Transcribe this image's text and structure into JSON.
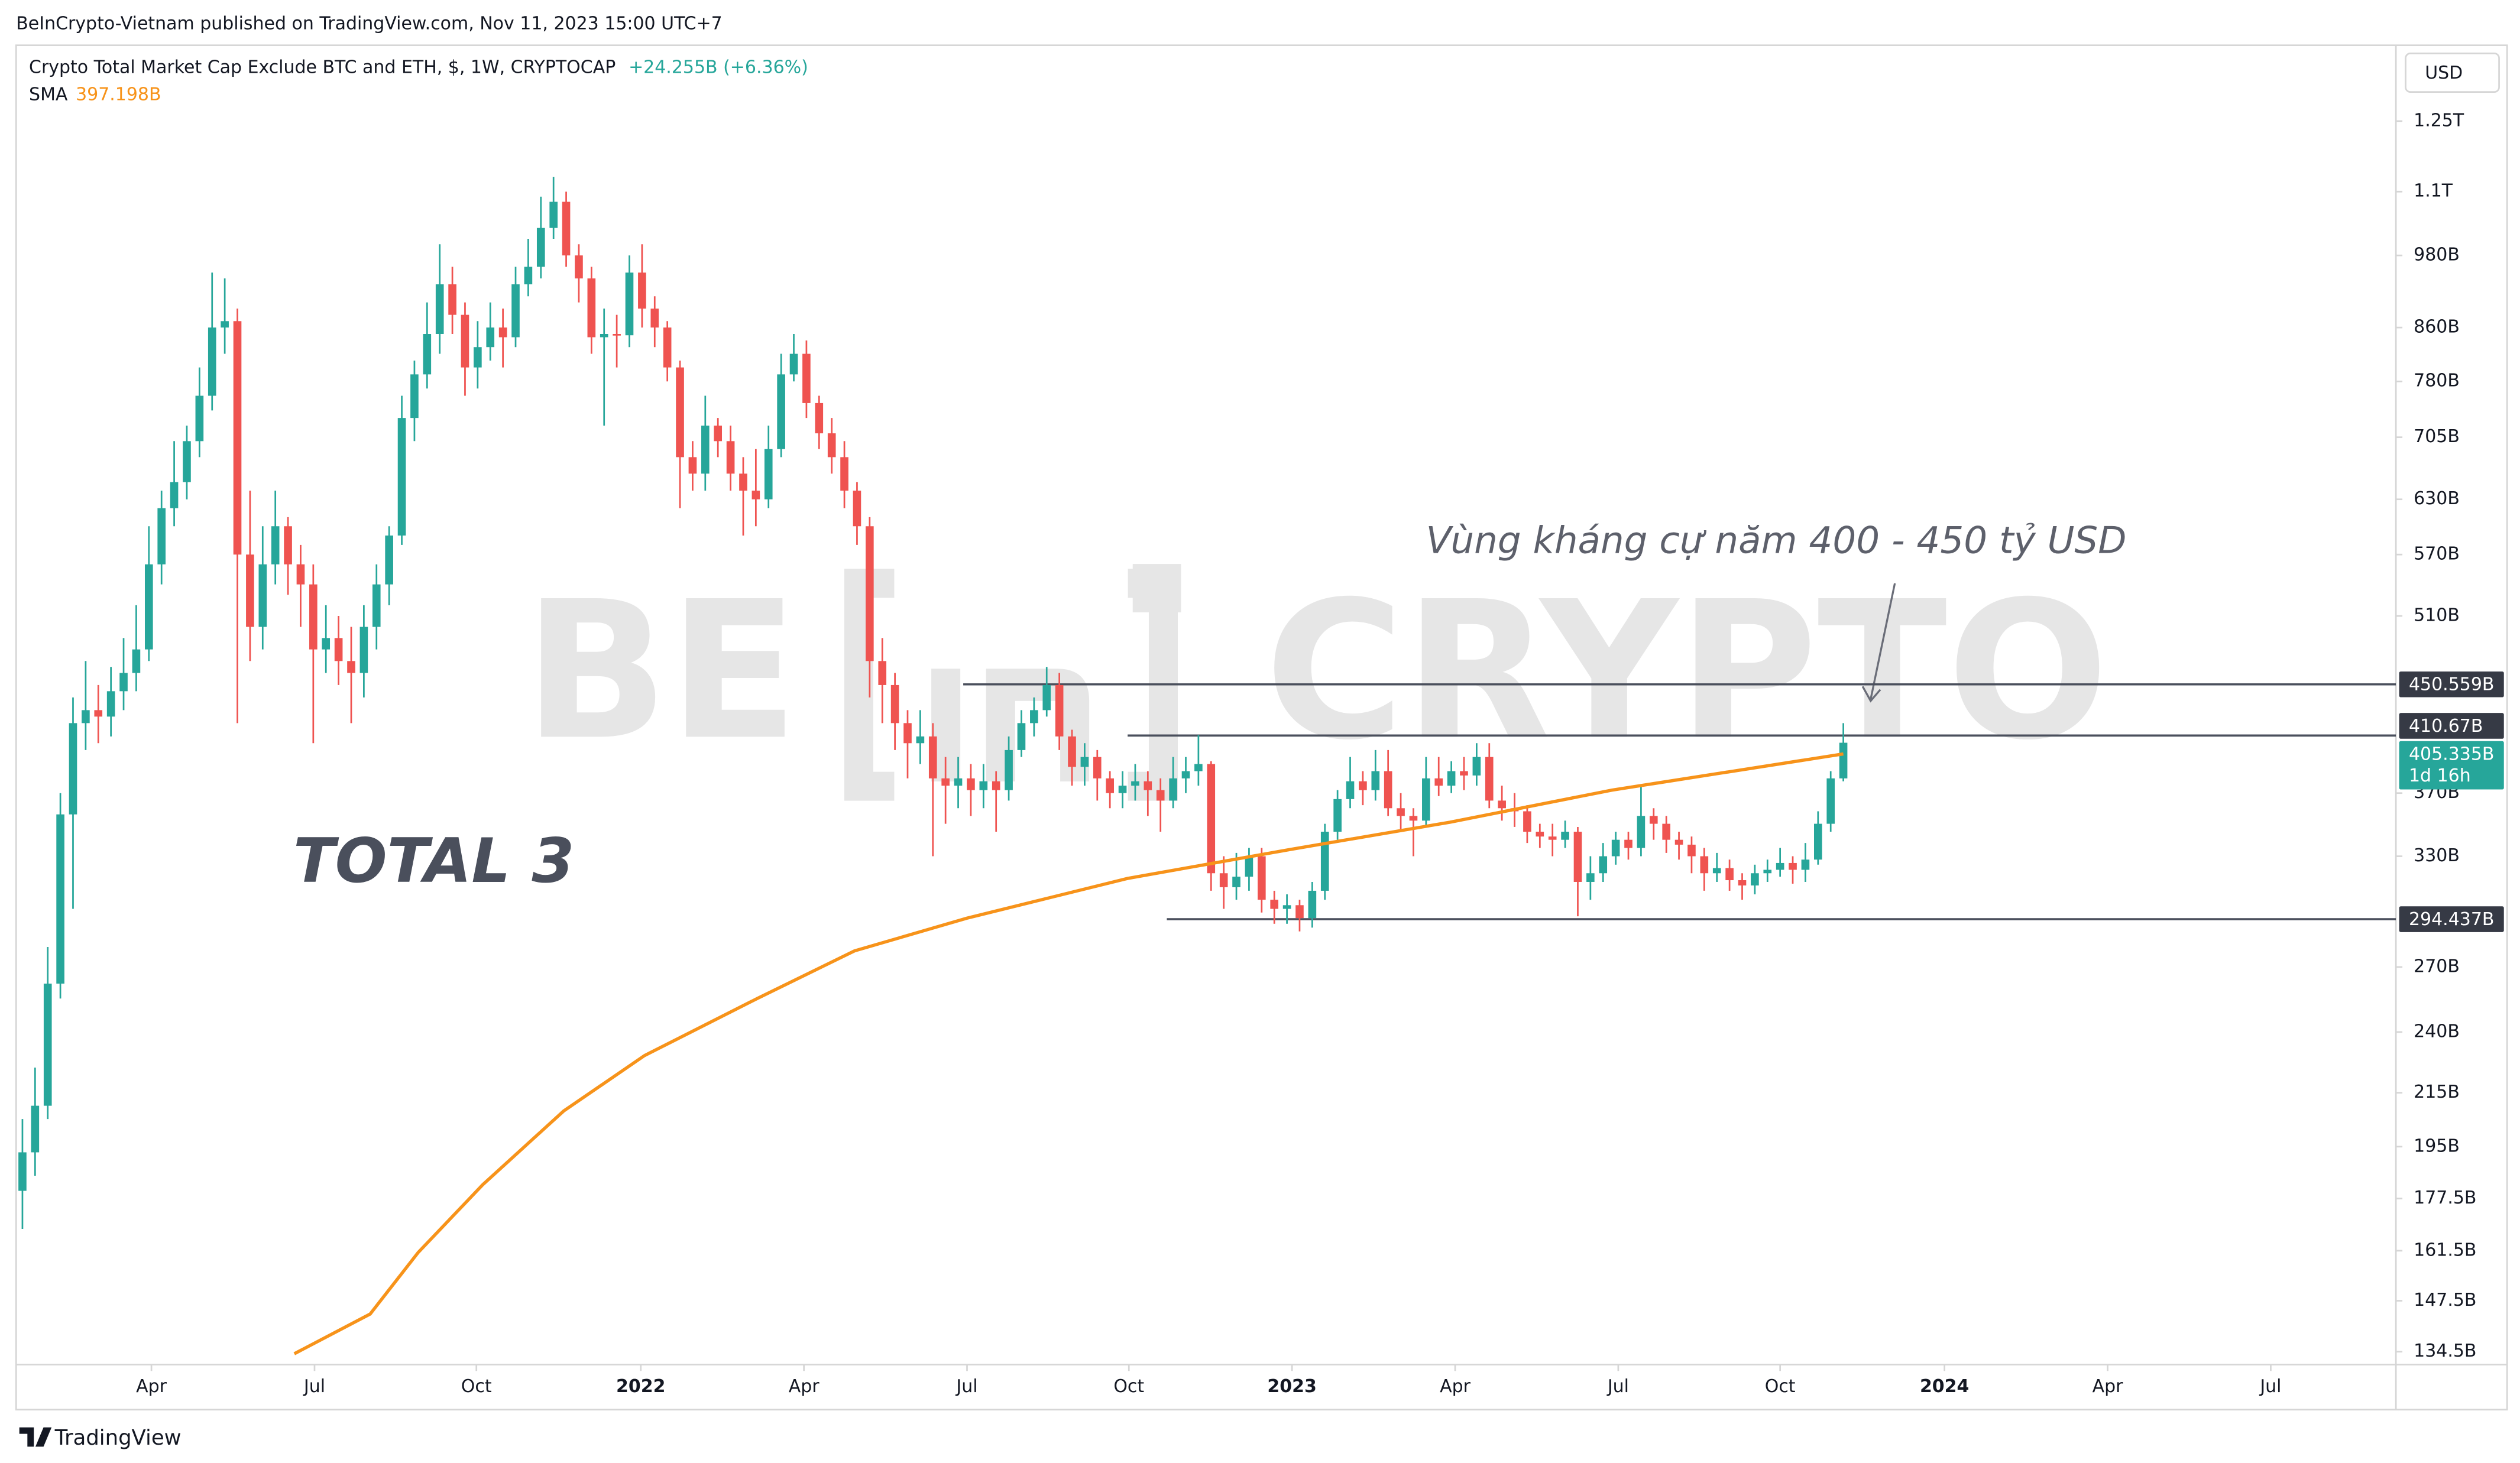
{
  "header": {
    "text": "BeInCrypto-Vietnam published on TradingView.com, Nov 11, 2023 15:00 UTC+7"
  },
  "footer": {
    "text": "TradingView"
  },
  "chart_data": {
    "type": "candlestick",
    "title": "Crypto Total Market Cap Exclude BTC and ETH, $, 1W, CRYPTOCAP",
    "change": "+24.255B (+6.36%)",
    "currency": "USD",
    "up_color": "#26a69a",
    "down_color": "#ef5350",
    "log_scale": true,
    "open": [
      180,
      193,
      210,
      262,
      356,
      420,
      430,
      425,
      445,
      460,
      480,
      560,
      620,
      650,
      700,
      760,
      860,
      870,
      570,
      500,
      560,
      600,
      560,
      540,
      480,
      490,
      470,
      460,
      500,
      540,
      590,
      730,
      790,
      850,
      930,
      880,
      800,
      830,
      860,
      845,
      930,
      960,
      1030,
      1080,
      980,
      940,
      845,
      850,
      848,
      950,
      890,
      860,
      800,
      680,
      660,
      720,
      700,
      660,
      640,
      630,
      690,
      790,
      820,
      750,
      710,
      680,
      640,
      600,
      470,
      450,
      420,
      405,
      410,
      380,
      375,
      380,
      372,
      378,
      372,
      400,
      420,
      430,
      450,
      410,
      388,
      395,
      380,
      370,
      375,
      378,
      372,
      365,
      380,
      385,
      390,
      320,
      312,
      318,
      330,
      305,
      300,
      302,
      295,
      310,
      345,
      366,
      378,
      372,
      385,
      360,
      355,
      352,
      380,
      375,
      385,
      382,
      395,
      365,
      360,
      358,
      345,
      342,
      340,
      345,
      315,
      320,
      330,
      340,
      335,
      355,
      350,
      340,
      337,
      330,
      320,
      323,
      316,
      313,
      320,
      322,
      326,
      322,
      328,
      350,
      380
    ],
    "high": [
      205,
      225,
      280,
      370,
      440,
      470,
      450,
      465,
      490,
      520,
      600,
      640,
      700,
      720,
      800,
      950,
      940,
      890,
      640,
      600,
      640,
      610,
      580,
      560,
      520,
      510,
      500,
      520,
      560,
      600,
      760,
      810,
      900,
      1000,
      960,
      900,
      870,
      900,
      890,
      960,
      1010,
      1090,
      1130,
      1100,
      1000,
      960,
      890,
      880,
      980,
      1000,
      910,
      870,
      810,
      700,
      760,
      730,
      720,
      680,
      690,
      720,
      820,
      850,
      840,
      760,
      730,
      700,
      650,
      610,
      490,
      460,
      430,
      430,
      420,
      395,
      395,
      390,
      390,
      385,
      410,
      430,
      440,
      465,
      460,
      415,
      405,
      400,
      385,
      385,
      390,
      385,
      380,
      395,
      395,
      411,
      392,
      330,
      332,
      335,
      335,
      310,
      308,
      305,
      315,
      350,
      372,
      395,
      385,
      400,
      400,
      370,
      360,
      395,
      395,
      392,
      395,
      405,
      405,
      375,
      370,
      362,
      350,
      350,
      352,
      348,
      330,
      338,
      345,
      345,
      376,
      360,
      355,
      345,
      342,
      335,
      332,
      328,
      320,
      325,
      328,
      335,
      330,
      338,
      358,
      385,
      420
    ],
    "low": [
      168,
      185,
      205,
      255,
      300,
      400,
      405,
      410,
      430,
      445,
      470,
      540,
      600,
      630,
      680,
      740,
      820,
      420,
      470,
      480,
      540,
      530,
      500,
      405,
      460,
      450,
      420,
      440,
      480,
      520,
      580,
      700,
      770,
      820,
      850,
      760,
      770,
      810,
      800,
      830,
      910,
      940,
      1010,
      960,
      900,
      820,
      720,
      800,
      830,
      860,
      830,
      780,
      620,
      640,
      640,
      680,
      640,
      590,
      600,
      620,
      680,
      780,
      730,
      690,
      660,
      620,
      580,
      440,
      420,
      400,
      380,
      390,
      330,
      350,
      360,
      355,
      360,
      345,
      365,
      395,
      410,
      425,
      400,
      375,
      375,
      365,
      360,
      360,
      365,
      355,
      345,
      360,
      370,
      375,
      310,
      300,
      305,
      310,
      298,
      292,
      292,
      288,
      290,
      305,
      340,
      360,
      362,
      365,
      355,
      345,
      330,
      348,
      368,
      370,
      372,
      375,
      360,
      352,
      348,
      338,
      335,
      330,
      335,
      296,
      305,
      315,
      325,
      328,
      330,
      340,
      332,
      328,
      320,
      310,
      315,
      310,
      305,
      308,
      315,
      318,
      314,
      315,
      325,
      345,
      378
    ],
    "close": [
      193,
      210,
      262,
      356,
      420,
      430,
      425,
      445,
      460,
      480,
      560,
      620,
      650,
      700,
      760,
      860,
      870,
      570,
      500,
      560,
      600,
      560,
      540,
      480,
      490,
      470,
      460,
      500,
      540,
      590,
      730,
      790,
      850,
      930,
      880,
      800,
      830,
      860,
      845,
      930,
      960,
      1030,
      1080,
      980,
      940,
      845,
      850,
      848,
      950,
      890,
      860,
      800,
      680,
      660,
      720,
      700,
      660,
      640,
      630,
      690,
      790,
      820,
      750,
      710,
      680,
      640,
      600,
      470,
      450,
      420,
      405,
      410,
      380,
      375,
      380,
      372,
      378,
      372,
      400,
      420,
      430,
      450,
      410,
      388,
      395,
      380,
      370,
      375,
      378,
      372,
      365,
      380,
      385,
      390,
      320,
      312,
      318,
      330,
      305,
      300,
      302,
      295,
      310,
      345,
      366,
      378,
      372,
      385,
      360,
      355,
      352,
      380,
      375,
      385,
      382,
      395,
      365,
      360,
      358,
      345,
      342,
      340,
      345,
      315,
      320,
      330,
      340,
      335,
      355,
      350,
      340,
      337,
      330,
      320,
      323,
      316,
      313,
      320,
      322,
      326,
      322,
      328,
      350,
      380,
      405.335
    ],
    "indicator": {
      "name": "SMA",
      "value": 397.198,
      "value_label": "397.198B",
      "color": "#f7931a",
      "x": [
        21.5,
        27.5,
        31.3,
        36.4,
        42.8,
        49.2,
        58.1,
        65.8,
        74.7,
        87.4,
        100.2,
        112.9,
        125.7,
        144
      ],
      "values": [
        134,
        144,
        161,
        182,
        208,
        230,
        255,
        278,
        295,
        317,
        334,
        351,
        372,
        397.198
      ]
    },
    "xlim": [
      -0.5,
      187.7
    ],
    "xticks": [
      {
        "value": 10.2,
        "label": "Apr"
      },
      {
        "value": 23.1,
        "label": "Jul"
      },
      {
        "value": 35.9,
        "label": "Oct"
      },
      {
        "value": 48.9,
        "label": "2022"
      },
      {
        "value": 61.8,
        "label": "Apr"
      },
      {
        "value": 74.7,
        "label": "Jul"
      },
      {
        "value": 87.5,
        "label": "Oct"
      },
      {
        "value": 100.4,
        "label": "2023"
      },
      {
        "value": 113.3,
        "label": "Apr"
      },
      {
        "value": 126.2,
        "label": "Jul"
      },
      {
        "value": 139,
        "label": "Oct"
      },
      {
        "value": 152,
        "label": "2024"
      },
      {
        "value": 164.9,
        "label": "Apr"
      },
      {
        "value": 177.8,
        "label": "Jul"
      }
    ],
    "ylim": [
      131.4,
      1434
    ],
    "yticks": [
      {
        "value": 1250,
        "label": "1.25T"
      },
      {
        "value": 1100,
        "label": "1.1T"
      },
      {
        "value": 980,
        "label": "980B"
      },
      {
        "value": 860,
        "label": "860B"
      },
      {
        "value": 780,
        "label": "780B"
      },
      {
        "value": 705,
        "label": "705B"
      },
      {
        "value": 630,
        "label": "630B"
      },
      {
        "value": 570,
        "label": "570B"
      },
      {
        "value": 510,
        "label": "510B"
      },
      {
        "value": 370,
        "label": "370B"
      },
      {
        "value": 330,
        "label": "330B"
      },
      {
        "value": 270,
        "label": "270B"
      },
      {
        "value": 240,
        "label": "240B"
      },
      {
        "value": 215,
        "label": "215B"
      },
      {
        "value": 195,
        "label": "195B"
      },
      {
        "value": 177.5,
        "label": "177.5B"
      },
      {
        "value": 161.5,
        "label": "161.5B"
      },
      {
        "value": 147.5,
        "label": "147.5B"
      },
      {
        "value": 134.5,
        "label": "134.5B"
      }
    ],
    "hlines": [
      {
        "value": 450.559,
        "label": "450.559B",
        "x_from": 74.4
      },
      {
        "value": 410.67,
        "label": "410.67B",
        "x_from": 87.4
      },
      {
        "value": 294.437,
        "label": "294.437B",
        "x_from": 90.5
      }
    ],
    "last_price": {
      "value": 405.335,
      "label": "405.335B",
      "countdown": "1d 16h"
    },
    "annotation": "Vùng kháng cự năm 400 - 450 tỷ USD",
    "label": "TOTAL 3",
    "watermark": [
      "BE",
      "CRYPTO"
    ]
  }
}
